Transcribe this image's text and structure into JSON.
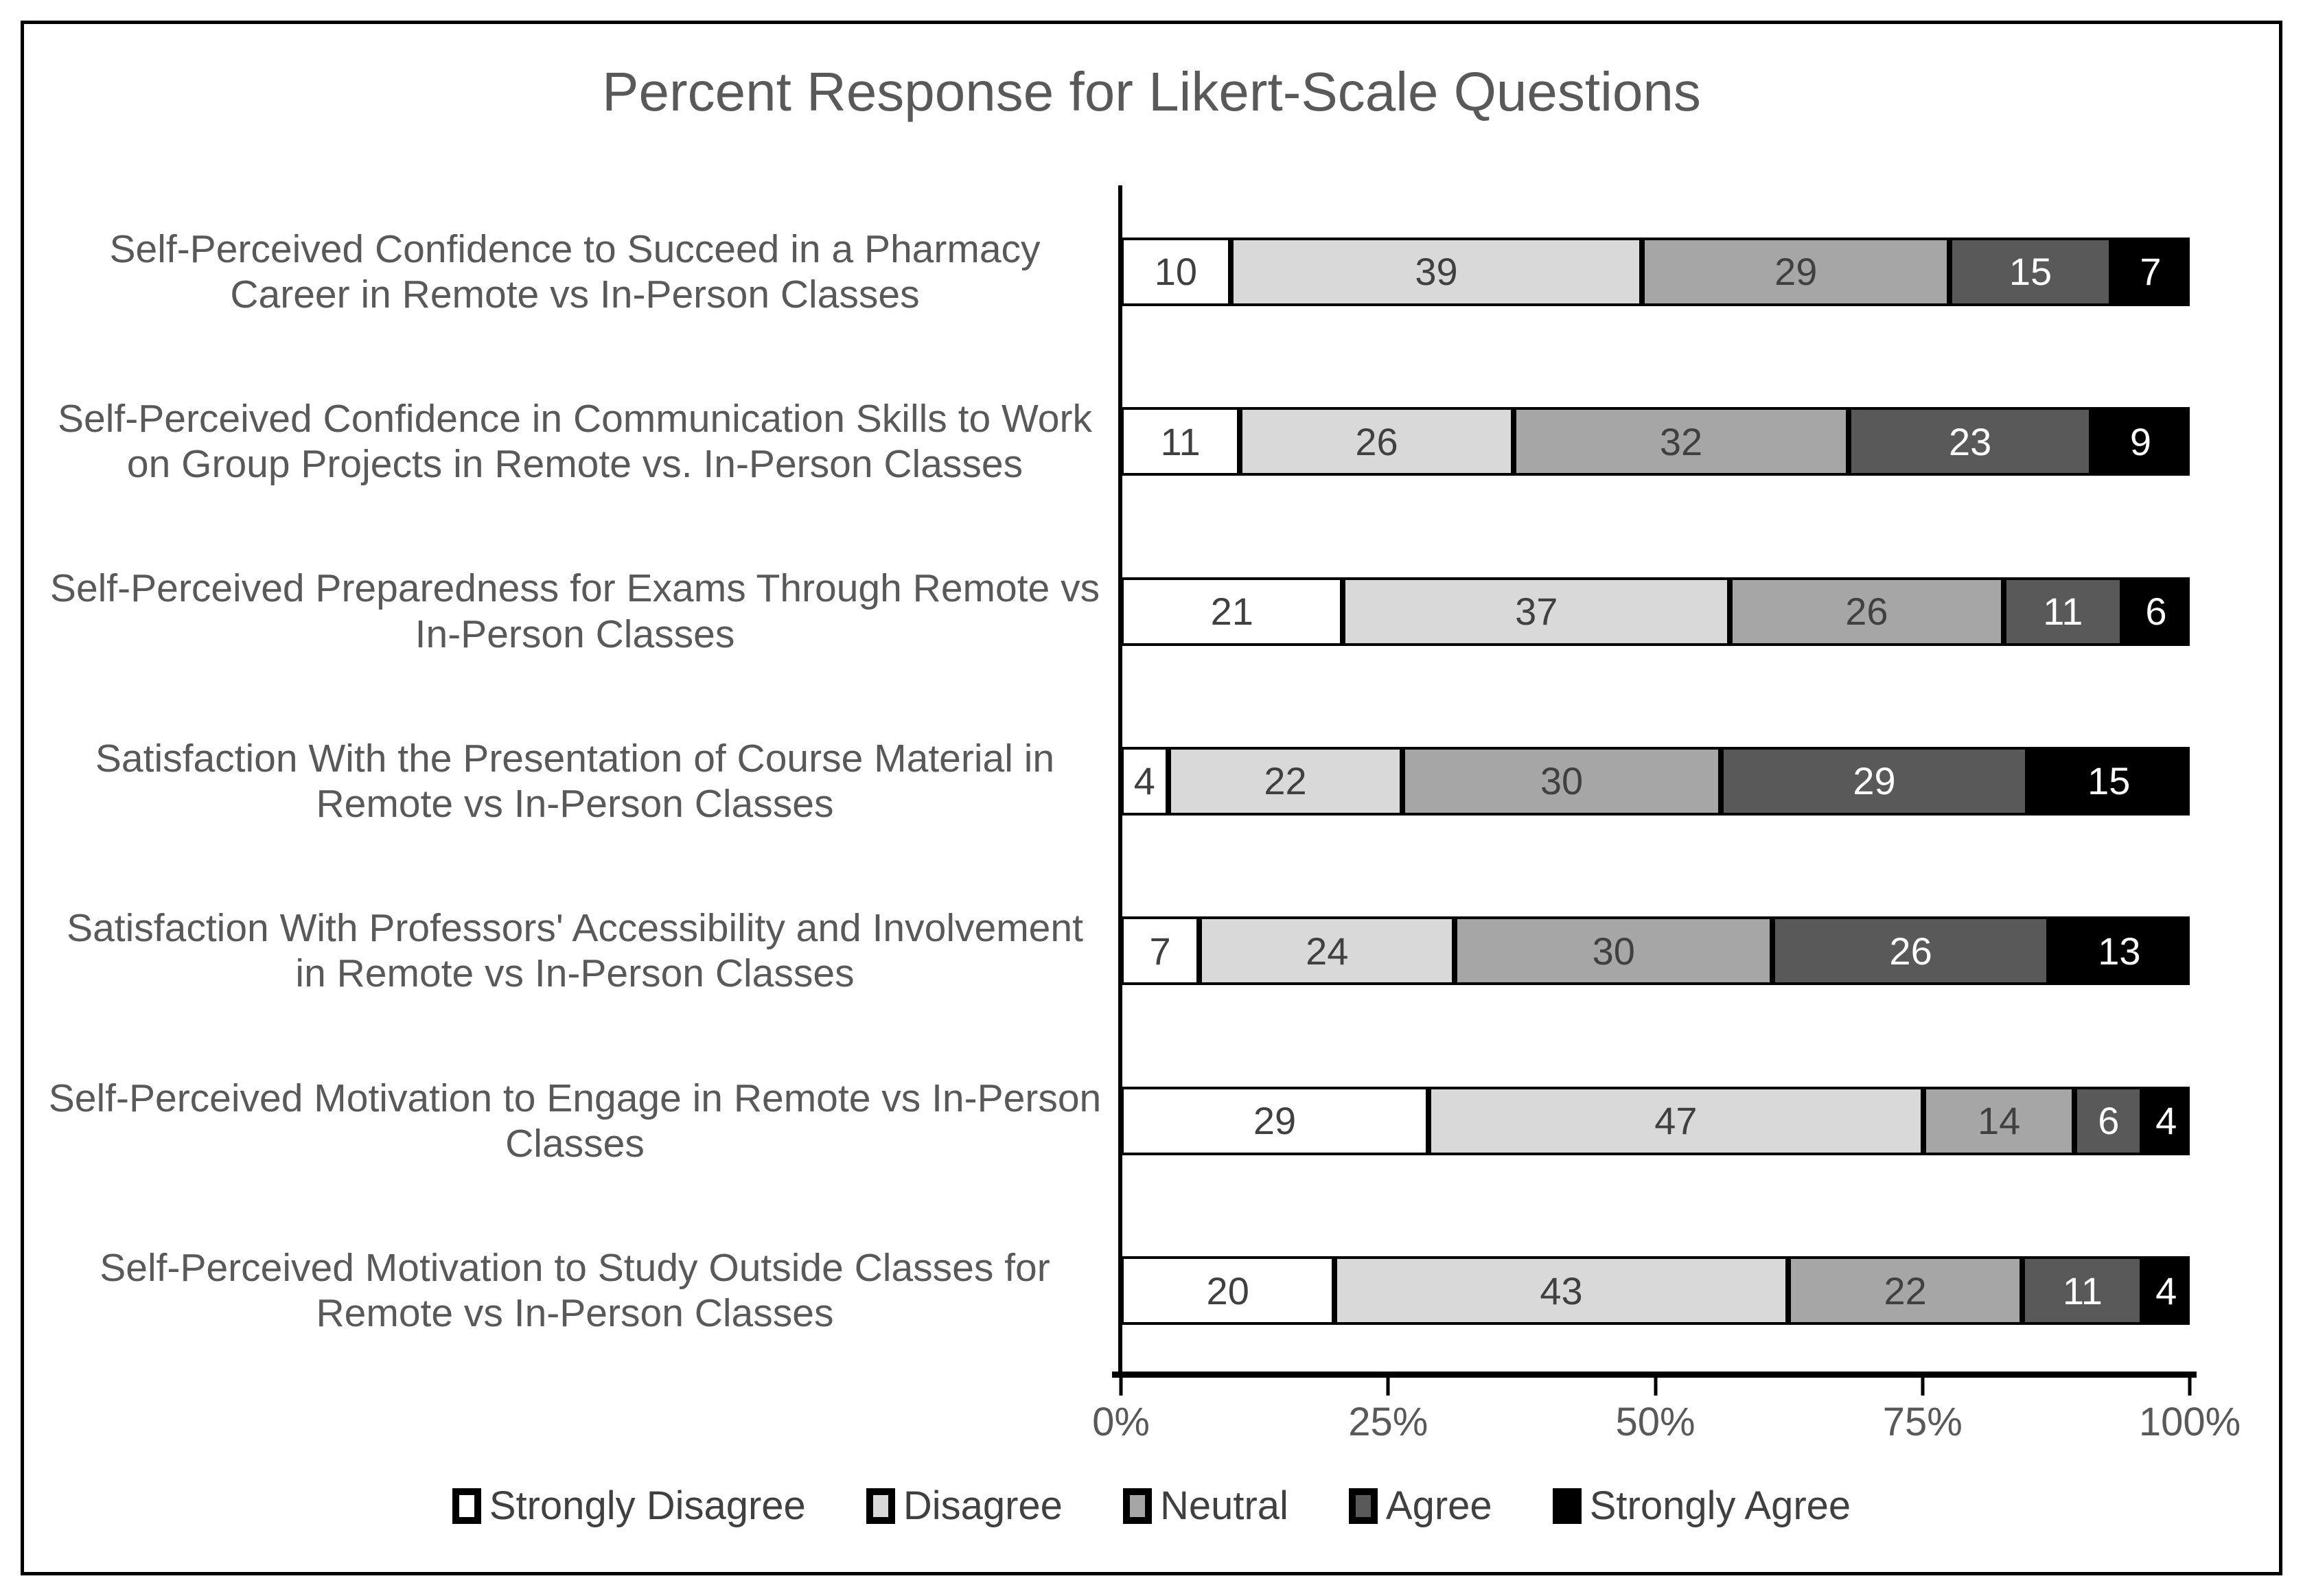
{
  "chart": {
    "title": "Percent Response for Likert-Scale Questions"
  },
  "chart_data": {
    "type": "bar",
    "subtype": "horizontal-stacked-100pct",
    "title": "Percent Response for Likert-Scale Questions",
    "unit": "percent",
    "categories": [
      "Self-Perceived Confidence to Succeed in a Pharmacy Career in Remote vs In-Person Classes",
      "Self-Perceived Confidence in Communication Skills to Work on Group Projects in Remote vs. In-Person Classes",
      "Self-Perceived Preparedness for Exams Through Remote vs In-Person Classes",
      "Satisfaction With the Presentation of Course Material in Remote vs In-Person Classes",
      "Satisfaction With Professors' Accessibility and Involvement in Remote vs In-Person Classes",
      "Self-Perceived Motivation to Engage in Remote vs In-Person Classes",
      "Self-Perceived Motivation to Study Outside Classes for Remote vs In-Person Classes"
    ],
    "series": [
      {
        "name": "Strongly Disagree",
        "color": "#FFFFFF",
        "label_color": "#404040",
        "values": [
          10,
          11,
          21,
          4,
          7,
          29,
          20
        ]
      },
      {
        "name": "Disagree",
        "color": "#D9D9D9",
        "label_color": "#404040",
        "values": [
          39,
          26,
          37,
          22,
          24,
          47,
          43
        ]
      },
      {
        "name": "Neutral",
        "color": "#A6A6A6",
        "label_color": "#404040",
        "values": [
          29,
          32,
          26,
          30,
          30,
          14,
          22
        ]
      },
      {
        "name": "Agree",
        "color": "#595959",
        "label_color": "#FFFFFF",
        "values": [
          15,
          23,
          11,
          29,
          26,
          6,
          11
        ]
      },
      {
        "name": "Strongly Agree",
        "color": "#000000",
        "label_color": "#FFFFFF",
        "values": [
          7,
          9,
          6,
          15,
          13,
          4,
          4
        ]
      }
    ],
    "x_ticks": [
      "0%",
      "25%",
      "50%",
      "75%",
      "100%"
    ],
    "xlim": [
      0,
      100
    ],
    "grid": false,
    "legend_position": "bottom",
    "axis_color": "#000000",
    "text_color": "#595959"
  }
}
